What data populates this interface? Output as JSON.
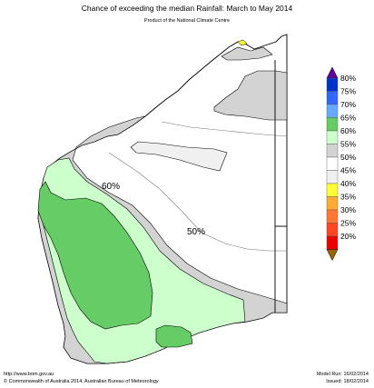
{
  "header": {
    "title": "Chance of exceeding the median Rainfall: March to May 2014",
    "subtitle": "Product of the National Climate Centre"
  },
  "map": {
    "contour_labels": [
      "60%",
      "50%"
    ]
  },
  "legend": {
    "items": [
      {
        "label": "80%",
        "color": "#0033cc"
      },
      {
        "label": "75%",
        "color": "#3366ff"
      },
      {
        "label": "70%",
        "color": "#66aaff"
      },
      {
        "label": "65%",
        "color": "#66cc66"
      },
      {
        "label": "60%",
        "color": "#ccffcc"
      },
      {
        "label": "55%",
        "color": "#d3d3d3"
      },
      {
        "label": "50%",
        "color": "#ffffff"
      },
      {
        "label": "45%",
        "color": "#f0f0f0"
      },
      {
        "label": "40%",
        "color": "#ffff33"
      },
      {
        "label": "35%",
        "color": "#ffaa33"
      },
      {
        "label": "30%",
        "color": "#ff7733"
      },
      {
        "label": "25%",
        "color": "#ff4422"
      },
      {
        "label": "20%",
        "color": "#ee0000"
      }
    ],
    "top_arrow_color": "#660099",
    "bottom_arrow_color": "#996600"
  },
  "footer": {
    "url": "http://www.bom.gov.au",
    "copyright": "©  Commonwealth of Australia 2014, Australian Bureau of Meteorology",
    "model_run": "Model Run: 16/02/2014",
    "issued": "Issued: 18/02/2014"
  }
}
